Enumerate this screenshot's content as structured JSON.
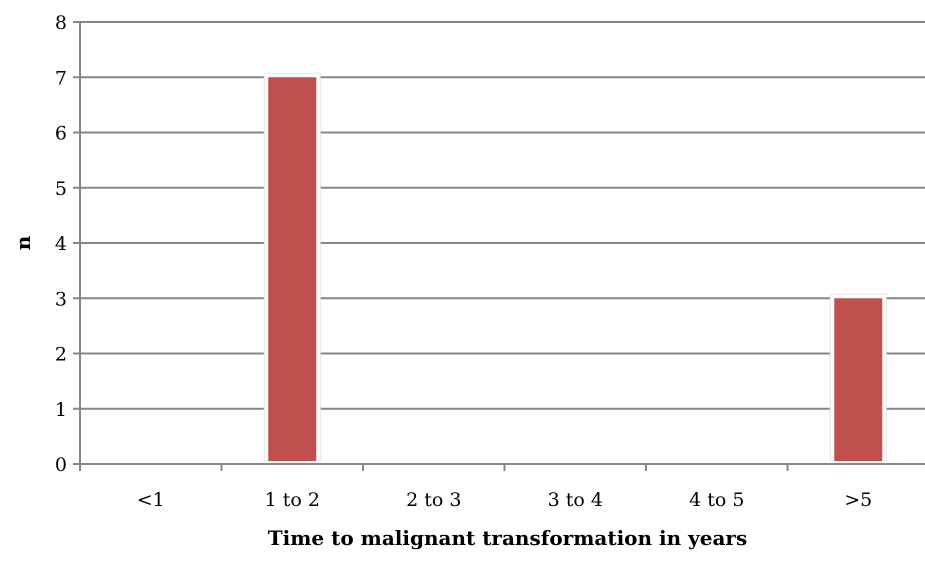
{
  "chart_data": {
    "type": "bar",
    "title": "",
    "xlabel": "Time to malignant transformation in years",
    "ylabel": "n",
    "categories": [
      "<1",
      "1 to 2",
      "2 to 3",
      "3 to 4",
      "4 to 5",
      ">5"
    ],
    "values": [
      0,
      7,
      0,
      0,
      0,
      3
    ],
    "ylim": [
      0,
      8
    ],
    "yticks": [
      "0",
      "1",
      "2",
      "3",
      "4",
      "5",
      "6",
      "7",
      "8"
    ],
    "grid": true,
    "legend": "none",
    "bar_color": "#C0504D",
    "grid_color": "#868686"
  }
}
